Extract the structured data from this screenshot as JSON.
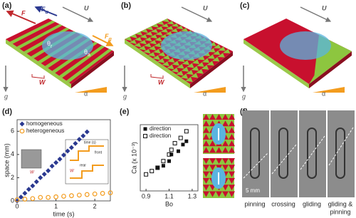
{
  "panels": {
    "a": {
      "label": "(a)",
      "F": "F",
      "Fu": {
        "main": "F",
        "sub": "u"
      },
      "U": "U",
      "Fg": {
        "main": "F",
        "sub": "g"
      },
      "theta_r": {
        "main": "θ",
        "sub": "r"
      },
      "theta_a": {
        "main": "θ",
        "sub": "a"
      },
      "W": "W",
      "g": "g",
      "alpha": "α"
    },
    "b": {
      "label": "(b)",
      "U": "U",
      "W": "W",
      "g": "g",
      "alpha": "α"
    },
    "c": {
      "label": "(c)",
      "U": "U",
      "g": "g",
      "alpha": "α"
    },
    "d": {
      "label": "(d)",
      "inset_labels": [
        "time (s)",
        "front",
        "rear",
        "W",
        "W"
      ]
    },
    "e": {
      "label": "(e)"
    },
    "f": {
      "label": "(f)",
      "scale": "5 mm",
      "captions": [
        "pinning",
        "crossing",
        "gliding",
        "gliding &",
        "pinning"
      ]
    }
  },
  "chart_data": [
    {
      "type": "scatter",
      "xlabel": "time (s)",
      "ylabel": "space (mm)",
      "xlim": [
        0,
        2.4
      ],
      "xticks": [
        0,
        1,
        2
      ],
      "ylim": [
        0,
        7
      ],
      "yticks": [
        0,
        2,
        4,
        6
      ],
      "series": [
        {
          "name": "homogeneous",
          "color": "#2b3990",
          "marker": "diamond",
          "x": [
            0,
            0.1,
            0.2,
            0.3,
            0.4,
            0.5,
            0.6,
            0.7,
            0.8,
            0.9,
            1.0,
            1.1,
            1.2,
            1.3,
            1.4,
            1.5,
            1.6,
            1.7,
            1.8
          ],
          "values": [
            0,
            0.33,
            0.66,
            1.0,
            1.3,
            1.65,
            2.0,
            2.3,
            2.6,
            3.0,
            3.3,
            3.6,
            3.95,
            4.3,
            4.6,
            4.95,
            5.3,
            5.6,
            5.95
          ]
        },
        {
          "name": "heterogeneous",
          "color": "#f39c1e",
          "marker": "circle",
          "x": [
            0,
            0.2,
            0.4,
            0.6,
            0.8,
            1.0,
            1.2,
            1.4,
            1.6,
            1.8,
            2.0,
            2.2,
            2.4
          ],
          "values": [
            0.1,
            0.15,
            0.2,
            0.3,
            0.3,
            0.35,
            0.4,
            0.45,
            0.5,
            0.55,
            0.6,
            0.65,
            0.7
          ]
        }
      ]
    },
    {
      "type": "scatter",
      "xlabel": "Bo",
      "ylabel": "Ca (x 10⁻³)",
      "xlim": [
        0.85,
        1.35
      ],
      "xticks": [
        0.9,
        1.1,
        1.3
      ],
      "ylim": [
        0,
        1
      ],
      "series": [
        {
          "name": "direction",
          "color": "#111111",
          "marker": "square-filled",
          "x": [
            1.0,
            1.05,
            1.1,
            1.12,
            1.18,
            1.22,
            1.25
          ],
          "values": [
            0.35,
            0.38,
            0.45,
            0.55,
            0.6,
            0.7,
            0.75
          ]
        },
        {
          "name": "direction",
          "color": "#111111",
          "marker": "square-open",
          "x": [
            0.9,
            0.95,
            1.0,
            1.05,
            1.1,
            1.12,
            1.15,
            1.2,
            1.25
          ],
          "values": [
            0.25,
            0.3,
            0.35,
            0.45,
            0.55,
            0.62,
            0.72,
            0.8,
            0.9
          ]
        }
      ]
    }
  ]
}
